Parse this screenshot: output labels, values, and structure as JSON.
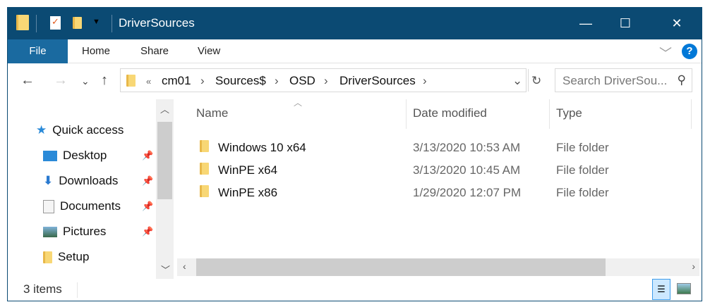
{
  "window": {
    "title": "DriverSources",
    "minimize": "—",
    "maximize": "☐",
    "close": "✕"
  },
  "ribbon": {
    "tabs": [
      "File",
      "Home",
      "Share",
      "View"
    ],
    "help": "?"
  },
  "address": {
    "overflow": "«",
    "crumbs": [
      "cm01",
      "Sources$",
      "OSD",
      "DriverSources"
    ],
    "separator": "›",
    "refresh": "↻",
    "dropdown": "⌄"
  },
  "search": {
    "placeholder": "Search DriverSou..."
  },
  "nav": {
    "back": "←",
    "forward": "→",
    "recent": "⌄",
    "up": "↑"
  },
  "sidebar": {
    "items": [
      {
        "label": "Quick access",
        "icon": "star-icon",
        "pinned": false
      },
      {
        "label": "Desktop",
        "icon": "desktop-icon",
        "pinned": true
      },
      {
        "label": "Downloads",
        "icon": "download-icon",
        "pinned": true
      },
      {
        "label": "Documents",
        "icon": "documents-icon",
        "pinned": true
      },
      {
        "label": "Pictures",
        "icon": "pictures-icon",
        "pinned": true
      },
      {
        "label": "Setup",
        "icon": "folder-icon",
        "pinned": false
      }
    ]
  },
  "columns": [
    "Name",
    "Date modified",
    "Type"
  ],
  "files": [
    {
      "name": "Windows 10 x64",
      "date": "3/13/2020 10:53 AM",
      "type": "File folder"
    },
    {
      "name": "WinPE x64",
      "date": "3/13/2020 10:45 AM",
      "type": "File folder"
    },
    {
      "name": "WinPE x86",
      "date": "1/29/2020 12:07 PM",
      "type": "File folder"
    }
  ],
  "status": {
    "count": "3 items"
  },
  "colors": {
    "titlebar": "#0b4a73",
    "file_tab": "#1a6aa0",
    "accent": "#0078d7"
  }
}
